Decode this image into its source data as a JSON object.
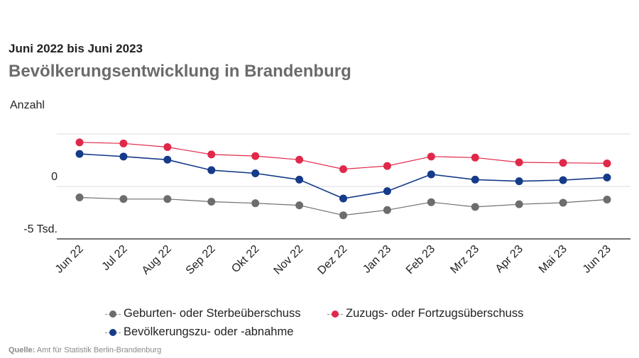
{
  "header": {
    "subtitle": "Juni 2022 bis Juni 2023",
    "title": "Bevölkerungsentwicklung in Brandenburg"
  },
  "chart_data": {
    "type": "line",
    "ylabel": "Anzahl",
    "ytick_labels": [
      {
        "value": 0,
        "label": "0"
      },
      {
        "value": -5000,
        "label": "-5 Tsd."
      }
    ],
    "ylim": [
      -5000,
      5000
    ],
    "grid": true,
    "legend_position": "bottom",
    "categories": [
      "Jun 22",
      "Jul 22",
      "Aug 22",
      "Sep 22",
      "Okt 22",
      "Nov 22",
      "Dez 22",
      "Jan 23",
      "Feb 23",
      "Mrz 23",
      "Apr 23",
      "Mai 23",
      "Jun 23"
    ],
    "series": [
      {
        "name": "Geburten- oder Sterbeüberschuss",
        "color": "#6d6d6d",
        "values": [
          -1050,
          -1200,
          -1200,
          -1450,
          -1600,
          -1800,
          -2750,
          -2250,
          -1500,
          -1950,
          -1700,
          -1550,
          -1250
        ]
      },
      {
        "name": "Zuzugs- oder Fortzugsüberschuss",
        "color": "#e0294a",
        "values": [
          4200,
          4100,
          3750,
          3050,
          2900,
          2550,
          1650,
          1950,
          2850,
          2750,
          2300,
          2250,
          2200
        ]
      },
      {
        "name": "Bevölkerungszu- oder -abnahme",
        "color": "#153b8a",
        "values": [
          3100,
          2850,
          2550,
          1550,
          1250,
          650,
          -1150,
          -450,
          1150,
          650,
          500,
          600,
          850
        ]
      }
    ]
  },
  "source": {
    "label": "Quelle:",
    "text": "Amt für Statistik Berlin-Brandenburg"
  }
}
